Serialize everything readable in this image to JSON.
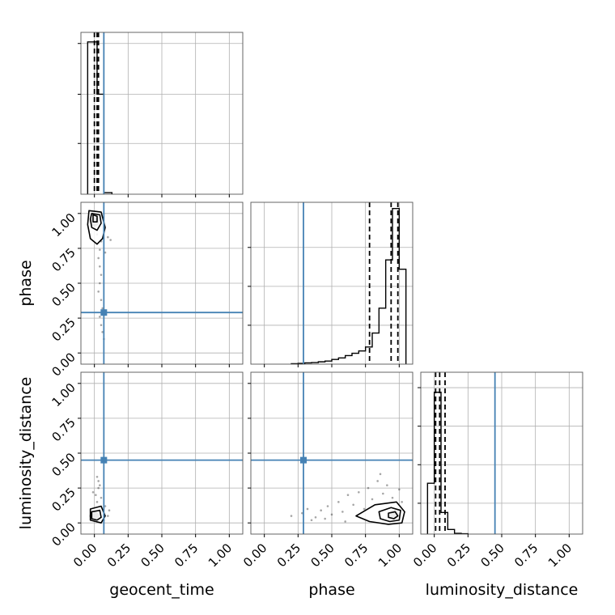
{
  "colors": {
    "truth": "#4682b4",
    "hist": "#000000",
    "quantile": "#000000",
    "grid": "#b0b0b0",
    "sample": "#000000"
  },
  "parameters": [
    "geocent_time",
    "phase",
    "luminosity_distance"
  ],
  "truths": {
    "geocent_time": 0.07,
    "phase": 0.29,
    "luminosity_distance": 0.45
  },
  "chart_data": [
    {
      "type": "bar",
      "panel": "hist-geocent_time",
      "xlim": [
        -0.1,
        1.1
      ],
      "ylim": [
        0,
        1.02
      ],
      "xticks": [
        0,
        0.25,
        0.5,
        0.75,
        1.0
      ],
      "yticks": [
        0.32,
        0.63,
        0.95
      ],
      "bins": [
        [
          -0.05,
          0.0,
          0.96
        ],
        [
          0.0,
          0.02,
          0.96
        ],
        [
          0.02,
          0.07,
          0.63
        ],
        [
          0.07,
          0.13,
          0.01
        ]
      ],
      "quantiles": [
        0.0,
        0.02,
        0.03
      ],
      "truth": 0.07,
      "grid": true
    },
    {
      "type": "bar",
      "panel": "hist-phase",
      "xlim": [
        -0.1,
        1.1
      ],
      "ylim": [
        0,
        1.04
      ],
      "xticks": [
        0,
        0.25,
        0.5,
        0.75,
        1.0
      ],
      "yticks": [
        0.25,
        0.5,
        0.75
      ],
      "bins": [
        [
          0.2,
          0.25,
          0.003
        ],
        [
          0.25,
          0.3,
          0.005
        ],
        [
          0.3,
          0.35,
          0.008
        ],
        [
          0.35,
          0.4,
          0.01
        ],
        [
          0.4,
          0.45,
          0.015
        ],
        [
          0.45,
          0.5,
          0.02
        ],
        [
          0.5,
          0.55,
          0.03
        ],
        [
          0.55,
          0.6,
          0.04
        ],
        [
          0.6,
          0.65,
          0.055
        ],
        [
          0.65,
          0.7,
          0.07
        ],
        [
          0.7,
          0.75,
          0.085
        ],
        [
          0.75,
          0.8,
          0.11
        ],
        [
          0.8,
          0.85,
          0.2
        ],
        [
          0.85,
          0.9,
          0.36
        ],
        [
          0.9,
          0.95,
          0.67
        ],
        [
          0.95,
          1.0,
          1.0
        ],
        [
          1.0,
          1.05,
          0.61
        ]
      ],
      "quantiles": [
        0.78,
        0.94,
        0.99
      ],
      "truth": 0.29,
      "grid": true
    },
    {
      "type": "bar",
      "panel": "hist-luminosity_distance",
      "xlim": [
        -0.1,
        1.1
      ],
      "ylim": [
        0,
        1.05
      ],
      "xticks": [
        0,
        0.25,
        0.5,
        0.75,
        1.0
      ],
      "yticks": [
        0.2,
        0.45,
        0.7,
        0.95
      ],
      "bins": [
        [
          -0.05,
          0.0,
          0.33
        ],
        [
          0.0,
          0.05,
          0.92
        ],
        [
          0.05,
          0.1,
          0.14
        ],
        [
          0.1,
          0.15,
          0.03
        ],
        [
          0.15,
          0.2,
          0.005
        ],
        [
          0.2,
          0.25,
          0.002
        ]
      ],
      "quantiles": [
        0.01,
        0.04,
        0.08
      ],
      "truth": 0.45,
      "grid": true
    },
    {
      "type": "scatter",
      "panel": "phase-vs-geocent_time",
      "xlim": [
        -0.1,
        1.1
      ],
      "ylim": [
        -0.08,
        1.08
      ],
      "xticks": [
        0,
        0.25,
        0.5,
        0.75,
        1.0
      ],
      "yticks": [
        0,
        0.25,
        0.5,
        0.75,
        1.0
      ],
      "xlabel": "",
      "ylabel": "phase",
      "truth": [
        0.07,
        0.29
      ],
      "density_center": [
        0.0,
        0.94
      ],
      "points": [
        [
          0.01,
          0.96
        ],
        [
          0.03,
          0.9
        ],
        [
          0.02,
          0.85
        ],
        [
          0.05,
          0.8
        ],
        [
          0.04,
          0.74
        ],
        [
          0.03,
          0.68
        ],
        [
          0.04,
          0.62
        ],
        [
          0.05,
          0.56
        ],
        [
          0.04,
          0.5
        ],
        [
          0.03,
          0.44
        ],
        [
          0.05,
          0.38
        ],
        [
          0.06,
          0.32
        ],
        [
          0.04,
          0.26
        ],
        [
          0.05,
          0.2
        ],
        [
          0.06,
          0.15
        ],
        [
          0.07,
          0.1
        ],
        [
          0.08,
          0.72
        ],
        [
          0.1,
          0.83
        ],
        [
          0.12,
          0.81
        ],
        [
          -0.02,
          0.99
        ]
      ],
      "contours": [
        [
          [
            -0.04,
            1.02
          ],
          [
            0.05,
            1.01
          ],
          [
            0.08,
            0.9
          ],
          [
            0.06,
            0.82
          ],
          [
            0.02,
            0.78
          ],
          [
            -0.03,
            0.82
          ],
          [
            -0.05,
            0.92
          ]
        ],
        [
          [
            -0.02,
            1.0
          ],
          [
            0.04,
            0.99
          ],
          [
            0.05,
            0.93
          ],
          [
            0.02,
            0.88
          ],
          [
            -0.02,
            0.9
          ],
          [
            -0.03,
            0.96
          ]
        ],
        [
          [
            -0.01,
            0.99
          ],
          [
            0.02,
            0.98
          ],
          [
            0.02,
            0.94
          ],
          [
            -0.01,
            0.94
          ]
        ]
      ]
    },
    {
      "type": "scatter",
      "panel": "luminosity_distance-vs-geocent_time",
      "xlim": [
        -0.1,
        1.1
      ],
      "ylim": [
        -0.08,
        1.08
      ],
      "xticks": [
        0,
        0.25,
        0.5,
        0.75,
        1.0
      ],
      "yticks": [
        0,
        0.25,
        0.5,
        0.75,
        1.0
      ],
      "xlabel": "geocent_time",
      "ylabel": "luminosity_distance",
      "truth": [
        0.07,
        0.45
      ],
      "density_center": [
        0.0,
        0.05
      ],
      "points": [
        [
          0.01,
          0.2
        ],
        [
          0.03,
          0.25
        ],
        [
          0.02,
          0.15
        ],
        [
          0.04,
          0.1
        ],
        [
          0.05,
          0.18
        ],
        [
          0.06,
          0.08
        ],
        [
          0.08,
          0.12
        ],
        [
          0.1,
          0.05
        ],
        [
          0.03,
          0.3
        ],
        [
          -0.01,
          0.22
        ],
        [
          0.02,
          0.33
        ],
        [
          0.07,
          0.02
        ],
        [
          0.11,
          0.09
        ],
        [
          0.04,
          0.27
        ]
      ],
      "contours": [
        [
          [
            -0.03,
            0.1
          ],
          [
            0.05,
            0.12
          ],
          [
            0.08,
            0.05
          ],
          [
            0.05,
            0.0
          ],
          [
            -0.03,
            0.02
          ]
        ],
        [
          [
            -0.02,
            0.08
          ],
          [
            0.04,
            0.09
          ],
          [
            0.05,
            0.04
          ],
          [
            0.02,
            0.02
          ],
          [
            -0.02,
            0.03
          ]
        ]
      ]
    },
    {
      "type": "scatter",
      "panel": "luminosity_distance-vs-phase",
      "xlim": [
        -0.1,
        1.1
      ],
      "ylim": [
        -0.08,
        1.08
      ],
      "xticks": [
        0,
        0.25,
        0.5,
        0.75,
        1.0
      ],
      "yticks": [
        0,
        0.25,
        0.5,
        0.75,
        1.0
      ],
      "xlabel": "phase",
      "ylabel": "",
      "truth": [
        0.29,
        0.45
      ],
      "density_center": [
        0.96,
        0.06
      ],
      "points": [
        [
          0.2,
          0.05
        ],
        [
          0.28,
          0.07
        ],
        [
          0.32,
          0.1
        ],
        [
          0.38,
          0.04
        ],
        [
          0.42,
          0.09
        ],
        [
          0.47,
          0.12
        ],
        [
          0.5,
          0.06
        ],
        [
          0.55,
          0.15
        ],
        [
          0.58,
          0.08
        ],
        [
          0.62,
          0.2
        ],
        [
          0.66,
          0.13
        ],
        [
          0.7,
          0.22
        ],
        [
          0.74,
          0.1
        ],
        [
          0.77,
          0.25
        ],
        [
          0.8,
          0.17
        ],
        [
          0.84,
          0.3
        ],
        [
          0.88,
          0.21
        ],
        [
          0.91,
          0.27
        ],
        [
          0.95,
          0.18
        ],
        [
          1.0,
          0.24
        ],
        [
          1.02,
          0.15
        ],
        [
          0.35,
          0.02
        ],
        [
          0.45,
          0.03
        ],
        [
          0.6,
          0.01
        ],
        [
          0.86,
          0.35
        ]
      ],
      "contours": [
        [
          [
            0.68,
            0.05
          ],
          [
            0.82,
            0.13
          ],
          [
            0.98,
            0.15
          ],
          [
            1.04,
            0.08
          ],
          [
            1.02,
            0.0
          ],
          [
            0.92,
            -0.01
          ],
          [
            0.78,
            0.01
          ]
        ],
        [
          [
            0.85,
            0.08
          ],
          [
            0.94,
            0.11
          ],
          [
            1.01,
            0.09
          ],
          [
            1.0,
            0.02
          ],
          [
            0.93,
            0.01
          ],
          [
            0.86,
            0.03
          ]
        ],
        [
          [
            0.92,
            0.07
          ],
          [
            0.97,
            0.08
          ],
          [
            0.99,
            0.05
          ],
          [
            0.96,
            0.03
          ],
          [
            0.92,
            0.04
          ]
        ]
      ]
    }
  ],
  "tick_labels": [
    "0.00",
    "0.25",
    "0.50",
    "0.75",
    "1.00"
  ],
  "axis_labels": {
    "x": [
      "geocent_time",
      "phase",
      "luminosity_distance"
    ],
    "y": [
      "phase",
      "luminosity_distance"
    ]
  }
}
